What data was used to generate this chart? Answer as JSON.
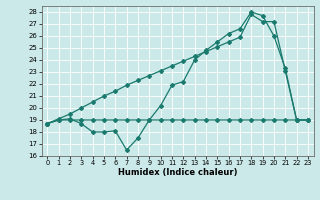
{
  "xlabel": "Humidex (Indice chaleur)",
  "bg_color": "#cce9e9",
  "line_color": "#1a7a6e",
  "grid_color": "#ffffff",
  "ylim": [
    16,
    28.5
  ],
  "xlim": [
    -0.5,
    23.5
  ],
  "yticks": [
    16,
    17,
    18,
    19,
    20,
    21,
    22,
    23,
    24,
    25,
    26,
    27,
    28
  ],
  "xticks": [
    0,
    1,
    2,
    3,
    4,
    5,
    6,
    7,
    8,
    9,
    10,
    11,
    12,
    13,
    14,
    15,
    16,
    17,
    18,
    19,
    20,
    21,
    22,
    23
  ],
  "line1_x": [
    0,
    1,
    2,
    3,
    4,
    5,
    6,
    7,
    8,
    9,
    10,
    11,
    12,
    13,
    14,
    15,
    16,
    17,
    18,
    19,
    20,
    21,
    22,
    23
  ],
  "line1_y": [
    18.7,
    19.0,
    19.0,
    19.0,
    19.0,
    19.0,
    19.0,
    19.0,
    19.0,
    19.0,
    19.0,
    19.0,
    19.0,
    19.0,
    19.0,
    19.0,
    19.0,
    19.0,
    19.0,
    19.0,
    19.0,
    19.0,
    19.0,
    19.0
  ],
  "line2_x": [
    0,
    1,
    2,
    3,
    4,
    5,
    6,
    7,
    8,
    9,
    10,
    11,
    12,
    13,
    14,
    15,
    16,
    17,
    18,
    19,
    20,
    21,
    22,
    23
  ],
  "line2_y": [
    18.7,
    19.0,
    19.1,
    18.7,
    18.0,
    18.0,
    18.1,
    16.5,
    17.5,
    19.0,
    20.2,
    21.9,
    22.2,
    24.0,
    24.8,
    25.5,
    26.2,
    26.6,
    28.0,
    27.7,
    26.0,
    23.3,
    19.0,
    19.0
  ],
  "line3_x": [
    0,
    1,
    2,
    3,
    4,
    5,
    6,
    7,
    8,
    9,
    10,
    11,
    12,
    13,
    14,
    15,
    16,
    17,
    18,
    19,
    20,
    21,
    22,
    23
  ],
  "line3_y": [
    18.7,
    19.1,
    19.5,
    20.0,
    20.5,
    21.0,
    21.4,
    21.9,
    22.3,
    22.7,
    23.1,
    23.5,
    23.9,
    24.3,
    24.7,
    25.1,
    25.5,
    25.9,
    27.8,
    27.2,
    27.2,
    23.1,
    19.0,
    19.0
  ]
}
